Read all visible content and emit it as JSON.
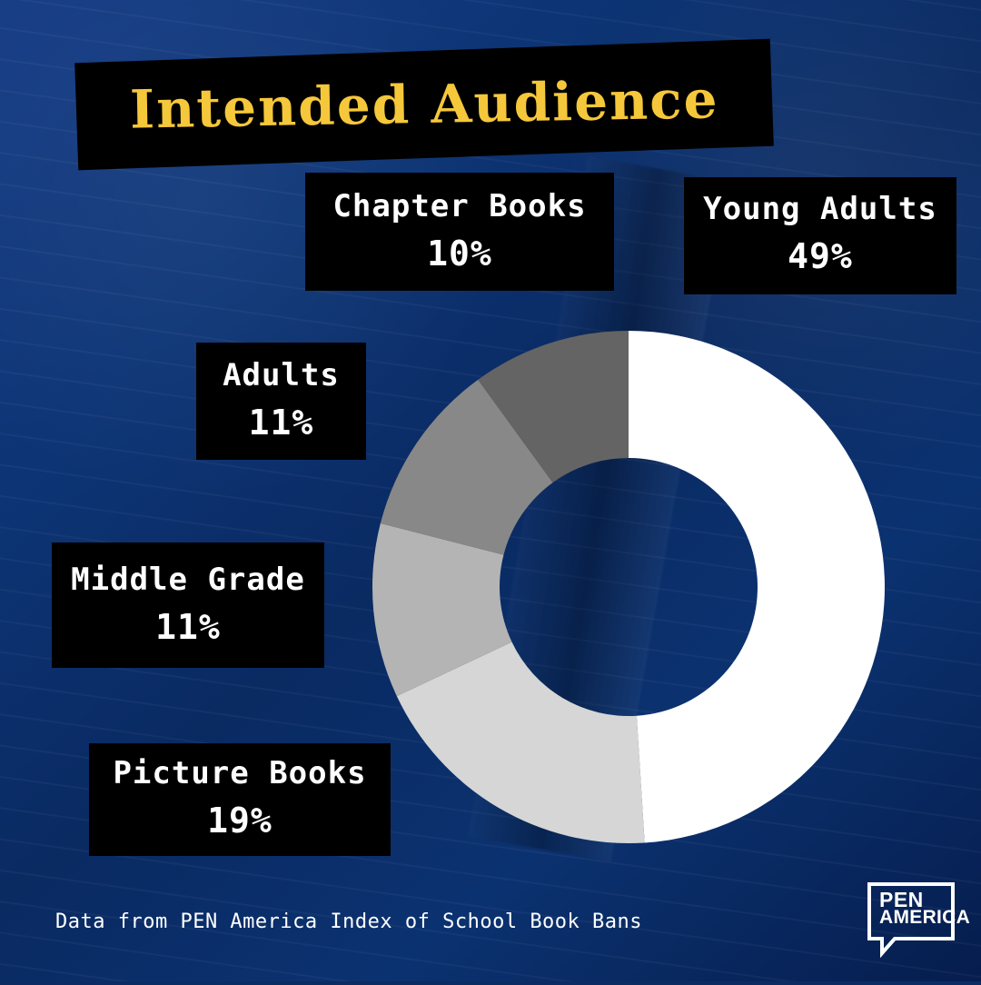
{
  "title": "Intended Audience",
  "footer": "Data from PEN America Index of School Book Bans",
  "logo": {
    "line1": "PEN",
    "line2": "AMERICA"
  },
  "labels": {
    "chapter_books": {
      "name": "Chapter Books",
      "value": "10%"
    },
    "young_adults": {
      "name": "Young Adults",
      "value": "49%"
    },
    "adults": {
      "name": "Adults",
      "value": "11%"
    },
    "middle_grade": {
      "name": "Middle Grade",
      "value": "11%"
    },
    "picture_books": {
      "name": "Picture Books",
      "value": "19%"
    }
  },
  "colors": {
    "title": "#f5c73a",
    "label_bg": "#000000",
    "young_adults": "#ffffff",
    "picture_books": "#d6d6d6",
    "middle_grade": "#b4b4b4",
    "adults": "#888888",
    "chapter_books": "#646464"
  },
  "chart_data": {
    "type": "pie",
    "categories": [
      "Young Adults",
      "Picture Books",
      "Middle Grade",
      "Adults",
      "Chapter Books"
    ],
    "values": [
      49,
      19,
      11,
      11,
      10
    ],
    "title": "Intended Audience"
  }
}
